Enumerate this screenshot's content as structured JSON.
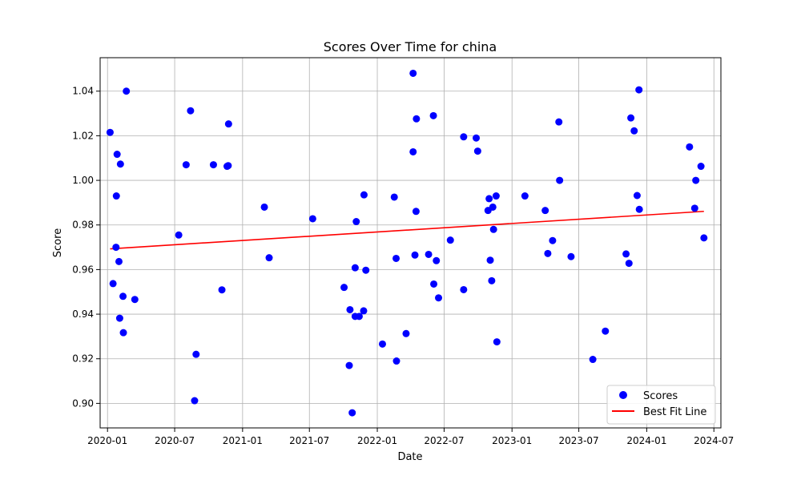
{
  "chart_data": {
    "type": "scatter",
    "title": "Scores Over Time for china",
    "xlabel": "Date",
    "ylabel": "Score",
    "xlim": [
      "2019-12-12",
      "2024-07-20"
    ],
    "ylim": [
      0.889,
      1.055
    ],
    "grid": true,
    "legend_position": "lower-right",
    "x_ticks": [
      "2020-01",
      "2020-07",
      "2021-01",
      "2021-07",
      "2022-01",
      "2022-07",
      "2023-01",
      "2023-07",
      "2024-01",
      "2024-07"
    ],
    "x_tick_dates": [
      "2020-01-01",
      "2020-07-01",
      "2021-01-01",
      "2021-07-01",
      "2022-01-01",
      "2022-07-01",
      "2023-01-01",
      "2023-07-01",
      "2024-01-01",
      "2024-07-01"
    ],
    "y_ticks": [
      0.9,
      0.92,
      0.94,
      0.96,
      0.98,
      1.0,
      1.02,
      1.04
    ],
    "y_tick_labels": [
      "0.90",
      "0.92",
      "0.94",
      "0.96",
      "0.98",
      "1.00",
      "1.02",
      "1.04"
    ],
    "series": [
      {
        "name": "Scores",
        "kind": "scatter",
        "color": "#0000ff",
        "points": [
          {
            "x": "2020-01-08",
            "y": 1.0215
          },
          {
            "x": "2020-01-16",
            "y": 0.9537
          },
          {
            "x": "2020-01-24",
            "y": 0.97
          },
          {
            "x": "2020-01-25",
            "y": 0.993
          },
          {
            "x": "2020-01-27",
            "y": 1.0117
          },
          {
            "x": "2020-02-01",
            "y": 0.9636
          },
          {
            "x": "2020-02-03",
            "y": 0.9382
          },
          {
            "x": "2020-02-05",
            "y": 1.0073
          },
          {
            "x": "2020-02-12",
            "y": 0.948
          },
          {
            "x": "2020-02-13",
            "y": 0.9317
          },
          {
            "x": "2020-02-21",
            "y": 1.04
          },
          {
            "x": "2020-03-15",
            "y": 0.9466
          },
          {
            "x": "2020-07-12",
            "y": 0.9755
          },
          {
            "x": "2020-08-01",
            "y": 1.007
          },
          {
            "x": "2020-08-13",
            "y": 1.0312
          },
          {
            "x": "2020-08-24",
            "y": 0.9012
          },
          {
            "x": "2020-08-28",
            "y": 0.922
          },
          {
            "x": "2020-10-14",
            "y": 1.007
          },
          {
            "x": "2020-11-06",
            "y": 0.9509
          },
          {
            "x": "2020-11-20",
            "y": 1.0063
          },
          {
            "x": "2020-11-23",
            "y": 1.0066
          },
          {
            "x": "2020-11-24",
            "y": 1.0253
          },
          {
            "x": "2021-03-01",
            "y": 0.988
          },
          {
            "x": "2021-03-14",
            "y": 0.9653
          },
          {
            "x": "2021-07-10",
            "y": 0.9828
          },
          {
            "x": "2021-10-03",
            "y": 0.952
          },
          {
            "x": "2021-10-17",
            "y": 0.917
          },
          {
            "x": "2021-10-19",
            "y": 0.942
          },
          {
            "x": "2021-10-25",
            "y": 0.8958
          },
          {
            "x": "2021-11-02",
            "y": 0.939
          },
          {
            "x": "2021-11-02",
            "y": 0.9608
          },
          {
            "x": "2021-11-05",
            "y": 0.9815
          },
          {
            "x": "2021-11-13",
            "y": 0.939
          },
          {
            "x": "2021-11-25",
            "y": 0.9415
          },
          {
            "x": "2021-11-26",
            "y": 0.9935
          },
          {
            "x": "2021-12-01",
            "y": 0.9597
          },
          {
            "x": "2022-01-15",
            "y": 0.9266
          },
          {
            "x": "2022-02-16",
            "y": 0.9925
          },
          {
            "x": "2022-02-21",
            "y": 0.965
          },
          {
            "x": "2022-02-22",
            "y": 0.919
          },
          {
            "x": "2022-03-20",
            "y": 0.9313
          },
          {
            "x": "2022-04-08",
            "y": 1.048
          },
          {
            "x": "2022-04-08",
            "y": 1.0128
          },
          {
            "x": "2022-04-13",
            "y": 0.9665
          },
          {
            "x": "2022-04-16",
            "y": 0.9861
          },
          {
            "x": "2022-04-17",
            "y": 1.0276
          },
          {
            "x": "2022-05-20",
            "y": 0.9668
          },
          {
            "x": "2022-06-02",
            "y": 1.029
          },
          {
            "x": "2022-06-03",
            "y": 0.9535
          },
          {
            "x": "2022-06-10",
            "y": 0.964
          },
          {
            "x": "2022-06-16",
            "y": 0.9473
          },
          {
            "x": "2022-07-18",
            "y": 0.9732
          },
          {
            "x": "2022-08-23",
            "y": 1.0195
          },
          {
            "x": "2022-08-23",
            "y": 0.951
          },
          {
            "x": "2022-09-26",
            "y": 1.019
          },
          {
            "x": "2022-09-30",
            "y": 1.0131
          },
          {
            "x": "2022-10-28",
            "y": 0.9865
          },
          {
            "x": "2022-10-31",
            "y": 0.9918
          },
          {
            "x": "2022-11-03",
            "y": 0.9642
          },
          {
            "x": "2022-11-07",
            "y": 0.955
          },
          {
            "x": "2022-11-10",
            "y": 0.988
          },
          {
            "x": "2022-11-12",
            "y": 0.978
          },
          {
            "x": "2022-11-19",
            "y": 0.993
          },
          {
            "x": "2022-11-21",
            "y": 0.9276
          },
          {
            "x": "2023-02-05",
            "y": 0.993
          },
          {
            "x": "2023-04-01",
            "y": 0.9865
          },
          {
            "x": "2023-04-08",
            "y": 0.9672
          },
          {
            "x": "2023-04-21",
            "y": 0.973
          },
          {
            "x": "2023-05-08",
            "y": 1.0262
          },
          {
            "x": "2023-05-10",
            "y": 1.0
          },
          {
            "x": "2023-06-10",
            "y": 0.9658
          },
          {
            "x": "2023-08-08",
            "y": 0.9197
          },
          {
            "x": "2023-09-11",
            "y": 0.9324
          },
          {
            "x": "2023-11-06",
            "y": 0.967
          },
          {
            "x": "2023-11-14",
            "y": 0.9628
          },
          {
            "x": "2023-11-19",
            "y": 1.028
          },
          {
            "x": "2023-11-28",
            "y": 1.0222
          },
          {
            "x": "2023-12-06",
            "y": 0.9932
          },
          {
            "x": "2023-12-12",
            "y": 0.987
          },
          {
            "x": "2023-12-11",
            "y": 1.0406
          },
          {
            "x": "2024-04-26",
            "y": 1.015
          },
          {
            "x": "2024-05-10",
            "y": 0.9875
          },
          {
            "x": "2024-05-13",
            "y": 1.0
          },
          {
            "x": "2024-05-27",
            "y": 1.0063
          },
          {
            "x": "2024-06-04",
            "y": 0.9742
          }
        ]
      },
      {
        "name": "Best Fit Line",
        "kind": "line",
        "color": "#ff0000",
        "points": [
          {
            "x": "2020-01-08",
            "y": 0.9693
          },
          {
            "x": "2024-06-04",
            "y": 0.9861
          }
        ]
      }
    ]
  }
}
